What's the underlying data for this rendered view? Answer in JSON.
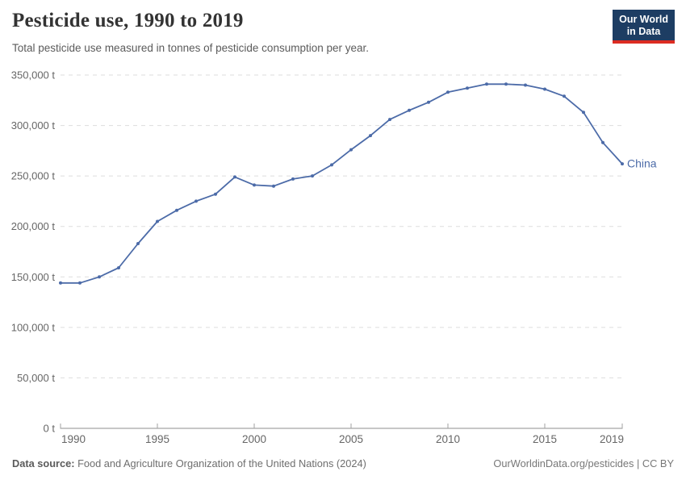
{
  "header": {
    "title": "Pesticide use, 1990 to 2019",
    "subtitle": "Total pesticide use measured in tonnes of pesticide consumption per year.",
    "logo_line1": "Our World",
    "logo_line2": "in Data"
  },
  "footer": {
    "datasource_label": "Data source:",
    "datasource_text": " Food and Agriculture Organization of the United Nations (2024)",
    "credit": "OurWorldinData.org/pesticides | CC BY"
  },
  "colors": {
    "series": "#4c6ba8",
    "grid": "#dddddd",
    "axis": "#8f8f8f",
    "tick_label": "#666666",
    "logo_bg": "#1d3d63",
    "logo_red": "#dc2c22"
  },
  "chart_data": {
    "type": "line",
    "title": "Pesticide use, 1990 to 2019",
    "xlabel": "",
    "ylabel": "",
    "unit_suffix": " t",
    "xlim": [
      1990,
      2019
    ],
    "ylim": [
      0,
      350000
    ],
    "grid": "horizontal-dashed",
    "legend": "end-of-line-label",
    "x_ticks": [
      1990,
      1995,
      2000,
      2005,
      2010,
      2015,
      2019
    ],
    "y_ticks": [
      0,
      50000,
      100000,
      150000,
      200000,
      250000,
      300000,
      350000
    ],
    "series": [
      {
        "name": "China",
        "color": "#4c6ba8",
        "x": [
          1990,
          1991,
          1992,
          1993,
          1994,
          1995,
          1996,
          1997,
          1998,
          1999,
          2000,
          2001,
          2002,
          2003,
          2004,
          2005,
          2006,
          2007,
          2008,
          2009,
          2010,
          2011,
          2012,
          2013,
          2014,
          2015,
          2016,
          2017,
          2018,
          2019
        ],
        "values": [
          144000,
          144000,
          150000,
          159000,
          183000,
          205000,
          216000,
          225000,
          232000,
          249000,
          241000,
          240000,
          247000,
          250000,
          261000,
          276000,
          290000,
          306000,
          315000,
          323000,
          333000,
          337000,
          341000,
          341000,
          340000,
          336000,
          329000,
          313000,
          283000,
          262000
        ]
      }
    ]
  }
}
